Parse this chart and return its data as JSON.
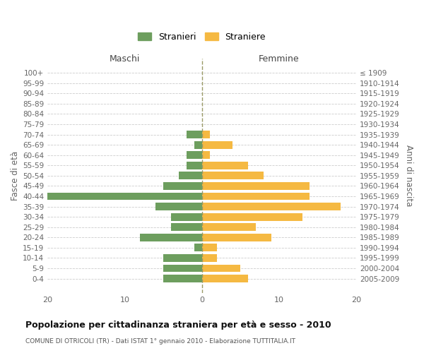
{
  "age_groups": [
    "100+",
    "95-99",
    "90-94",
    "85-89",
    "80-84",
    "75-79",
    "70-74",
    "65-69",
    "60-64",
    "55-59",
    "50-54",
    "45-49",
    "40-44",
    "35-39",
    "30-34",
    "25-29",
    "20-24",
    "15-19",
    "10-14",
    "5-9",
    "0-4"
  ],
  "birth_years": [
    "≤ 1909",
    "1910-1914",
    "1915-1919",
    "1920-1924",
    "1925-1929",
    "1930-1934",
    "1935-1939",
    "1940-1944",
    "1945-1949",
    "1950-1954",
    "1955-1959",
    "1960-1964",
    "1965-1969",
    "1970-1974",
    "1975-1979",
    "1980-1984",
    "1985-1989",
    "1990-1994",
    "1995-1999",
    "2000-2004",
    "2005-2009"
  ],
  "males": [
    0,
    0,
    0,
    0,
    0,
    0,
    2,
    1,
    2,
    2,
    3,
    5,
    20,
    6,
    4,
    4,
    8,
    1,
    5,
    5,
    5
  ],
  "females": [
    0,
    0,
    0,
    0,
    0,
    0,
    1,
    4,
    1,
    6,
    8,
    14,
    14,
    18,
    13,
    7,
    9,
    2,
    2,
    5,
    6
  ],
  "male_color": "#6d9e5e",
  "female_color": "#f5b942",
  "title": "Popolazione per cittadinanza straniera per età e sesso - 2010",
  "subtitle": "COMUNE DI OTRICOLI (TR) - Dati ISTAT 1° gennaio 2010 - Elaborazione TUTTITALIA.IT",
  "ylabel_left": "Fasce di età",
  "ylabel_right": "Anni di nascita",
  "xlabel_left": "Maschi",
  "xlabel_right": "Femmine",
  "legend_males": "Stranieri",
  "legend_females": "Straniere",
  "xlim": 20,
  "bar_height": 0.75,
  "grid_color": "#cccccc",
  "center_line_color": "#999966"
}
